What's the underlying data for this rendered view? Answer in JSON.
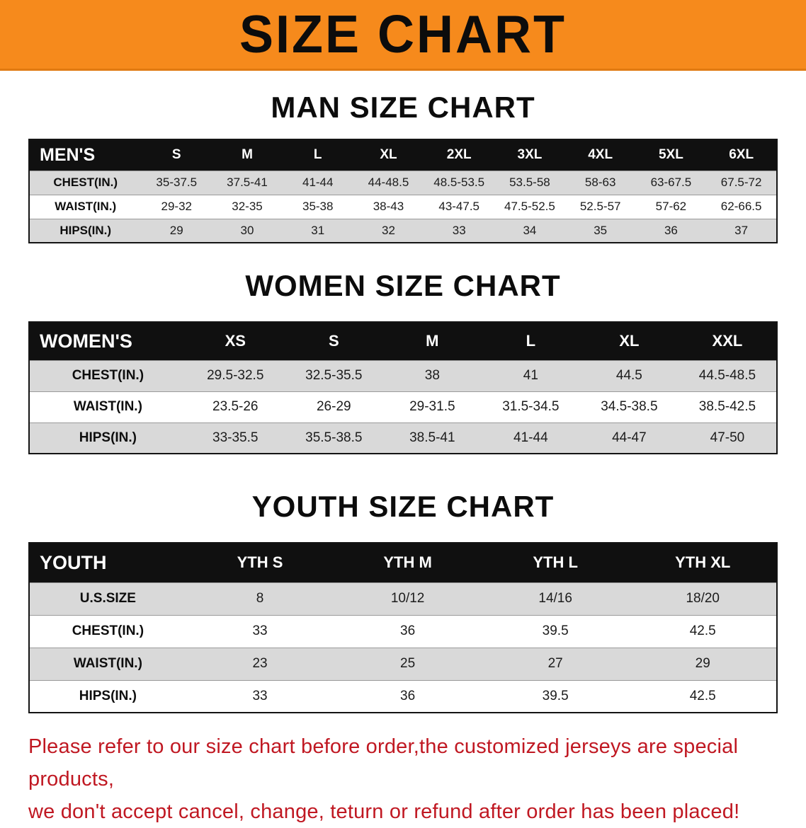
{
  "page": {
    "banner_title": "SIZE CHART",
    "banner_bg": "#f68a1c",
    "footer_color": "#c01822",
    "footer_line1": "Please refer to our size chart before order,the customized jerseys are special products,",
    "footer_line2": "we don't accept cancel, change, teturn or refund after order has been placed!"
  },
  "men": {
    "section_title": "MAN SIZE CHART",
    "header": [
      "MEN'S",
      "S",
      "M",
      "L",
      "XL",
      "2XL",
      "3XL",
      "4XL",
      "5XL",
      "6XL"
    ],
    "rows": [
      {
        "label": "CHEST(IN.)",
        "values": [
          "35-37.5",
          "37.5-41",
          "41-44",
          "44-48.5",
          "48.5-53.5",
          "53.5-58",
          "58-63",
          "63-67.5",
          "67.5-72"
        ]
      },
      {
        "label": "WAIST(IN.)",
        "values": [
          "29-32",
          "32-35",
          "35-38",
          "38-43",
          "43-47.5",
          "47.5-52.5",
          "52.5-57",
          "57-62",
          "62-66.5"
        ]
      },
      {
        "label": "HIPS(IN.)",
        "values": [
          "29",
          "30",
          "31",
          "32",
          "33",
          "34",
          "35",
          "36",
          "37"
        ]
      }
    ]
  },
  "women": {
    "section_title": "WOMEN SIZE CHART",
    "header": [
      "WOMEN'S",
      "XS",
      "S",
      "M",
      "L",
      "XL",
      "XXL"
    ],
    "rows": [
      {
        "label": "CHEST(IN.)",
        "values": [
          "29.5-32.5",
          "32.5-35.5",
          "38",
          "41",
          "44.5",
          "44.5-48.5"
        ]
      },
      {
        "label": "WAIST(IN.)",
        "values": [
          "23.5-26",
          "26-29",
          "29-31.5",
          "31.5-34.5",
          "34.5-38.5",
          "38.5-42.5"
        ]
      },
      {
        "label": "HIPS(IN.)",
        "values": [
          "33-35.5",
          "35.5-38.5",
          "38.5-41",
          "41-44",
          "44-47",
          "47-50"
        ]
      }
    ]
  },
  "youth": {
    "section_title": "YOUTH SIZE CHART",
    "header": [
      "YOUTH",
      "YTH S",
      "YTH M",
      "YTH L",
      "YTH XL"
    ],
    "rows": [
      {
        "label": "U.S.SIZE",
        "values": [
          "8",
          "10/12",
          "14/16",
          "18/20"
        ]
      },
      {
        "label": "CHEST(IN.)",
        "values": [
          "33",
          "36",
          "39.5",
          "42.5"
        ]
      },
      {
        "label": "WAIST(IN.)",
        "values": [
          "23",
          "25",
          "27",
          "29"
        ]
      },
      {
        "label": "HIPS(IN.)",
        "values": [
          "33",
          "36",
          "39.5",
          "42.5"
        ]
      }
    ]
  }
}
